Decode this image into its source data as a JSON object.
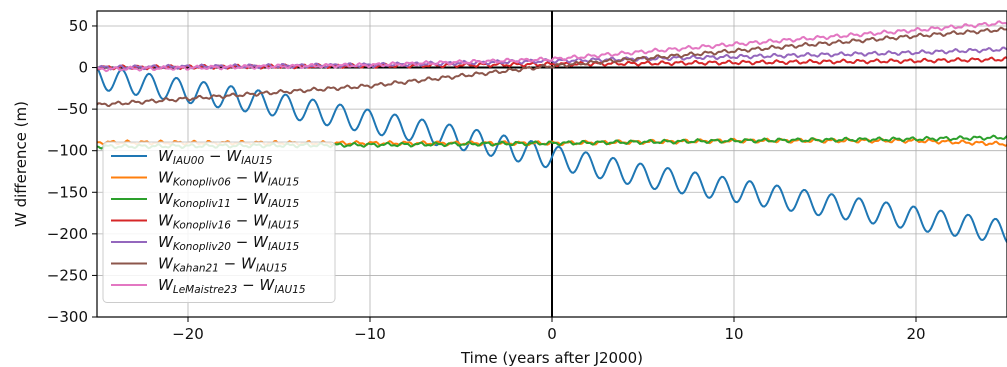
{
  "chart_data": {
    "type": "line",
    "xlabel": "Time (years after J2000)",
    "ylabel": "W difference (m)",
    "xlim": [
      -25,
      25
    ],
    "ylim": [
      -300,
      68
    ],
    "xticks": [
      -20,
      -10,
      0,
      10,
      20
    ],
    "yticks": [
      50,
      0,
      -50,
      -100,
      -150,
      -200,
      -250,
      -300
    ],
    "xtick_labels": [
      "−20",
      "−10",
      "0",
      "10",
      "20"
    ],
    "ytick_labels": [
      "50",
      "0",
      "−50",
      "−100",
      "−150",
      "−200",
      "−250",
      "−300"
    ],
    "grid": true,
    "legend_position": "lower-left",
    "reference_lines": {
      "x": 0,
      "y": 0
    },
    "series": [
      {
        "label_main": "W",
        "label_sub": "IAU00",
        "label_minus": "−",
        "label_main2": "W",
        "label_sub2": "IAU15",
        "color": "#1f77b4",
        "x": [
          -25,
          -15,
          -5,
          5,
          15,
          25
        ],
        "y": [
          -12,
          -45,
          -85,
          -130,
          -165,
          -198
        ],
        "oscillation_amplitude": 14,
        "oscillation_period_years": 1.5
      },
      {
        "label_main": "W",
        "label_sub": "Konopliv06",
        "label_minus": "−",
        "label_main2": "W",
        "label_sub2": "IAU15",
        "color": "#ff7f0e",
        "x": [
          -25,
          -10,
          0,
          10,
          20,
          25
        ],
        "y": [
          -90,
          -91,
          -91,
          -88,
          -88,
          -92
        ]
      },
      {
        "label_main": "W",
        "label_sub": "Konopliv11",
        "label_minus": "−",
        "label_main2": "W",
        "label_sub2": "IAU15",
        "color": "#2ca02c",
        "x": [
          -25,
          -10,
          0,
          10,
          20,
          25
        ],
        "y": [
          -95,
          -93,
          -91,
          -88,
          -86,
          -84
        ]
      },
      {
        "label_main": "W",
        "label_sub": "Konopliv16",
        "label_minus": "−",
        "label_main2": "W",
        "label_sub2": "IAU15",
        "color": "#d62728",
        "x": [
          -25,
          -10,
          0,
          10,
          20,
          25
        ],
        "y": [
          0,
          2,
          4,
          6,
          8,
          10
        ]
      },
      {
        "label_main": "W",
        "label_sub": "Konopliv20",
        "label_minus": "−",
        "label_main2": "W",
        "label_sub2": "IAU15",
        "color": "#9467bd",
        "x": [
          -25,
          -10,
          0,
          10,
          20,
          25
        ],
        "y": [
          0,
          3,
          8,
          13,
          18,
          22
        ]
      },
      {
        "label_main": "W",
        "label_sub": "Kahan21",
        "label_minus": "−",
        "label_main2": "W",
        "label_sub2": "IAU15",
        "color": "#8c564b",
        "x": [
          -25,
          -10,
          0,
          10,
          20,
          25
        ],
        "y": [
          -45,
          -22,
          2,
          20,
          38,
          46
        ]
      },
      {
        "label_main": "W",
        "label_sub": "LeMaistre23",
        "label_minus": "−",
        "label_main2": "W",
        "label_sub2": "IAU15",
        "color": "#e377c2",
        "x": [
          -25,
          -10,
          0,
          10,
          20,
          25
        ],
        "y": [
          -2,
          3,
          10,
          28,
          45,
          54
        ]
      }
    ]
  }
}
